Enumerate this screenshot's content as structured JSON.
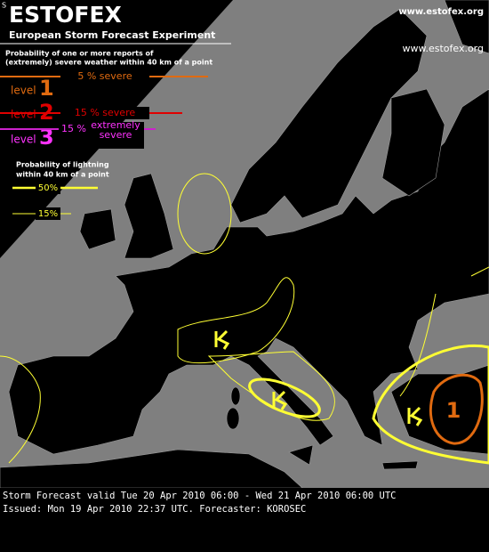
{
  "header": {
    "corner_mark": "S",
    "title": "ESTOFEX",
    "subtitle": "European Storm Forecast Experiment",
    "url_small": "www.estofex.org",
    "url_large": "www.estofex.org"
  },
  "legend": {
    "severe_heading": [
      "Probability of one or more reports of",
      "(extremely) severe weather within 40 km of a point"
    ],
    "levels": [
      {
        "word": "level",
        "number": "1",
        "label": [
          "5 % severe"
        ]
      },
      {
        "word": "level",
        "number": "2",
        "label": [
          "15 % severe"
        ]
      },
      {
        "word": "level",
        "number": "3",
        "label": [
          "15 %",
          "extremely",
          "severe"
        ]
      }
    ],
    "lightning_heading": [
      "Probability of lightning",
      "within 40 km of a point"
    ],
    "lightning_levels": [
      "50%",
      "15%"
    ]
  },
  "map": {
    "level_marker": "1"
  },
  "footer": {
    "valid": "Storm Forecast valid Tue 20 Apr 2010 06:00 - Wed 21 Apr 2010 06:00 UTC",
    "issued": "Issued: Mon 19 Apr 2010 22:37 UTC. Forecaster: KOROSEC"
  }
}
